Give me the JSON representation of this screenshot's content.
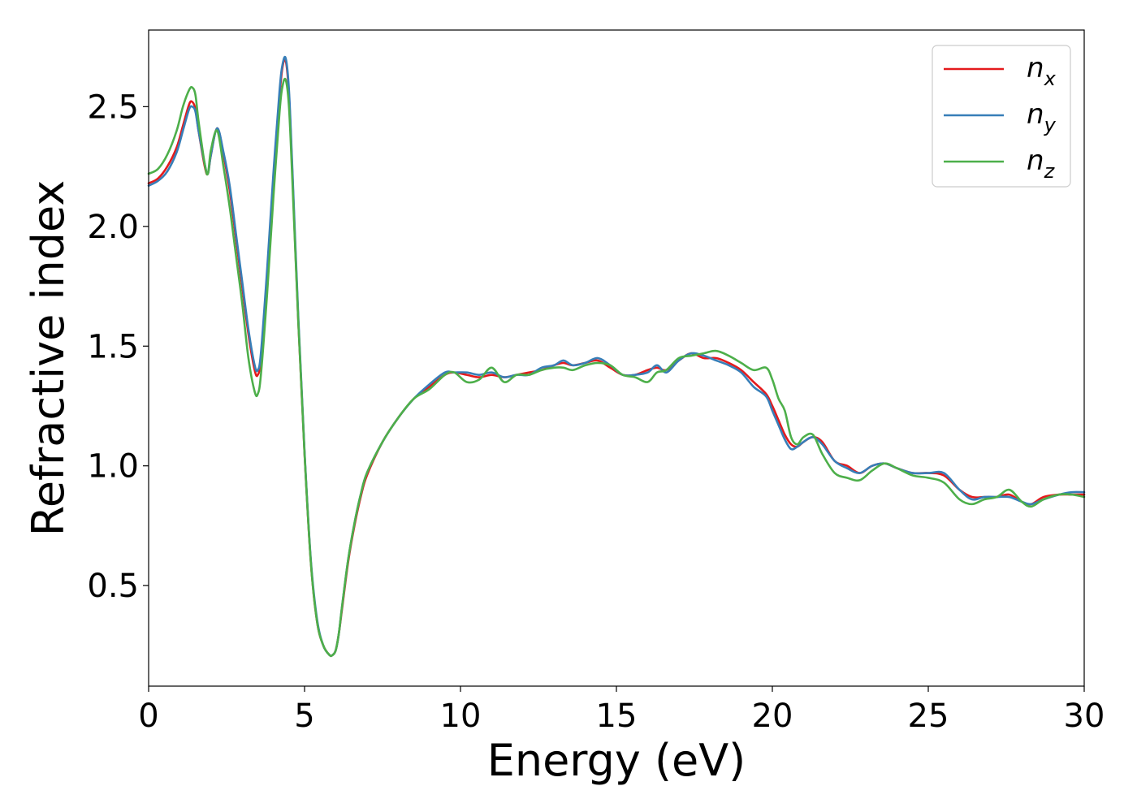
{
  "chart_data": {
    "type": "line",
    "xlabel": "Energy (eV)",
    "ylabel": "Refractive index",
    "xlim": [
      0,
      30
    ],
    "ylim": [
      0.08,
      2.82
    ],
    "xticks": [
      0,
      5,
      10,
      15,
      20,
      25,
      30
    ],
    "xtick_labels": [
      "0",
      "5",
      "10",
      "15",
      "20",
      "25",
      "30"
    ],
    "yticks": [
      0.5,
      1.0,
      1.5,
      2.0,
      2.5
    ],
    "ytick_labels": [
      "0.5",
      "1.0",
      "1.5",
      "2.0",
      "2.5"
    ],
    "grid": false,
    "legend_position": "top-right",
    "series": [
      {
        "name": "n_x",
        "label_main": "n",
        "label_sub": "x",
        "color": "#e41a1c",
        "x": [
          0,
          0.3,
          0.6,
          0.9,
          1.1,
          1.3,
          1.4,
          1.5,
          1.6,
          1.8,
          1.9,
          2.0,
          2.2,
          2.4,
          2.6,
          2.8,
          3.0,
          3.2,
          3.4,
          3.5,
          3.6,
          3.8,
          4.0,
          4.2,
          4.3,
          4.4,
          4.5,
          4.6,
          4.8,
          5.0,
          5.2,
          5.4,
          5.6,
          5.8,
          5.9,
          6.0,
          6.1,
          6.2,
          6.4,
          6.6,
          6.8,
          7.0,
          7.5,
          8.0,
          8.5,
          9.0,
          9.5,
          9.8,
          10.2,
          10.6,
          11.0,
          11.4,
          11.8,
          12.2,
          12.6,
          13.0,
          13.3,
          13.6,
          14.0,
          14.4,
          14.8,
          15.2,
          15.6,
          16.0,
          16.3,
          16.6,
          17.0,
          17.4,
          17.8,
          18.2,
          18.6,
          19.0,
          19.4,
          19.8,
          20.0,
          20.2,
          20.4,
          20.6,
          20.8,
          21.0,
          21.3,
          21.6,
          22.0,
          22.4,
          22.8,
          23.2,
          23.6,
          24.0,
          24.5,
          25.0,
          25.5,
          26.0,
          26.4,
          26.8,
          27.2,
          27.6,
          28.0,
          28.3,
          28.7,
          29.2,
          29.6,
          30.0
        ],
        "values": [
          2.18,
          2.2,
          2.25,
          2.33,
          2.42,
          2.51,
          2.52,
          2.49,
          2.4,
          2.25,
          2.22,
          2.3,
          2.41,
          2.3,
          2.15,
          1.95,
          1.75,
          1.55,
          1.4,
          1.38,
          1.45,
          1.8,
          2.2,
          2.55,
          2.67,
          2.69,
          2.55,
          2.25,
          1.6,
          1.05,
          0.6,
          0.35,
          0.25,
          0.21,
          0.21,
          0.23,
          0.3,
          0.4,
          0.6,
          0.75,
          0.87,
          0.96,
          1.1,
          1.2,
          1.28,
          1.33,
          1.38,
          1.39,
          1.38,
          1.37,
          1.38,
          1.37,
          1.38,
          1.39,
          1.4,
          1.42,
          1.43,
          1.42,
          1.43,
          1.44,
          1.41,
          1.38,
          1.38,
          1.4,
          1.41,
          1.4,
          1.44,
          1.47,
          1.45,
          1.45,
          1.43,
          1.4,
          1.35,
          1.3,
          1.25,
          1.19,
          1.13,
          1.09,
          1.08,
          1.1,
          1.12,
          1.1,
          1.02,
          1.0,
          0.97,
          1.0,
          1.01,
          0.99,
          0.97,
          0.97,
          0.96,
          0.9,
          0.87,
          0.87,
          0.87,
          0.88,
          0.85,
          0.84,
          0.87,
          0.88,
          0.88,
          0.88
        ]
      },
      {
        "name": "n_y",
        "label_main": "n",
        "label_sub": "y",
        "color": "#377eb8",
        "x": [
          0,
          0.3,
          0.6,
          0.9,
          1.1,
          1.3,
          1.4,
          1.5,
          1.6,
          1.8,
          1.9,
          2.0,
          2.2,
          2.4,
          2.6,
          2.8,
          3.0,
          3.2,
          3.4,
          3.5,
          3.6,
          3.8,
          4.0,
          4.2,
          4.3,
          4.4,
          4.5,
          4.6,
          4.8,
          5.0,
          5.2,
          5.4,
          5.6,
          5.8,
          5.9,
          6.0,
          6.1,
          6.2,
          6.4,
          6.6,
          6.8,
          7.0,
          7.5,
          8.0,
          8.5,
          9.0,
          9.5,
          9.8,
          10.2,
          10.6,
          11.0,
          11.4,
          11.8,
          12.2,
          12.6,
          13.0,
          13.3,
          13.6,
          14.0,
          14.4,
          14.8,
          15.2,
          15.6,
          16.0,
          16.3,
          16.6,
          17.0,
          17.4,
          17.8,
          18.2,
          18.6,
          19.0,
          19.4,
          19.8,
          20.0,
          20.2,
          20.4,
          20.6,
          20.8,
          21.0,
          21.3,
          21.6,
          22.0,
          22.4,
          22.8,
          23.2,
          23.6,
          24.0,
          24.5,
          25.0,
          25.5,
          26.0,
          26.4,
          26.8,
          27.2,
          27.6,
          28.0,
          28.3,
          28.7,
          29.2,
          29.6,
          30.0
        ],
        "values": [
          2.17,
          2.19,
          2.23,
          2.31,
          2.4,
          2.49,
          2.5,
          2.48,
          2.4,
          2.26,
          2.22,
          2.3,
          2.41,
          2.31,
          2.17,
          1.97,
          1.77,
          1.57,
          1.42,
          1.4,
          1.47,
          1.82,
          2.22,
          2.57,
          2.68,
          2.7,
          2.57,
          2.27,
          1.62,
          1.06,
          0.61,
          0.36,
          0.25,
          0.21,
          0.21,
          0.23,
          0.3,
          0.41,
          0.61,
          0.76,
          0.88,
          0.97,
          1.1,
          1.2,
          1.28,
          1.34,
          1.39,
          1.39,
          1.39,
          1.38,
          1.39,
          1.37,
          1.38,
          1.38,
          1.41,
          1.42,
          1.44,
          1.42,
          1.43,
          1.45,
          1.42,
          1.38,
          1.38,
          1.39,
          1.42,
          1.39,
          1.44,
          1.47,
          1.46,
          1.44,
          1.42,
          1.39,
          1.33,
          1.29,
          1.23,
          1.17,
          1.11,
          1.07,
          1.08,
          1.1,
          1.12,
          1.09,
          1.02,
          0.99,
          0.97,
          1.0,
          1.01,
          0.99,
          0.97,
          0.97,
          0.97,
          0.9,
          0.86,
          0.87,
          0.87,
          0.87,
          0.85,
          0.84,
          0.86,
          0.88,
          0.89,
          0.89
        ]
      },
      {
        "name": "n_z",
        "label_main": "n",
        "label_sub": "z",
        "color": "#4daf4a",
        "x": [
          0,
          0.3,
          0.6,
          0.9,
          1.1,
          1.3,
          1.4,
          1.5,
          1.6,
          1.8,
          1.9,
          2.0,
          2.2,
          2.4,
          2.6,
          2.8,
          3.0,
          3.2,
          3.4,
          3.5,
          3.6,
          3.8,
          4.0,
          4.2,
          4.3,
          4.4,
          4.5,
          4.6,
          4.8,
          5.0,
          5.2,
          5.4,
          5.6,
          5.8,
          5.9,
          6.0,
          6.1,
          6.2,
          6.4,
          6.6,
          6.8,
          7.0,
          7.5,
          8.0,
          8.5,
          9.0,
          9.5,
          9.8,
          10.2,
          10.6,
          11.0,
          11.4,
          11.8,
          12.2,
          12.6,
          13.0,
          13.3,
          13.6,
          14.0,
          14.4,
          14.8,
          15.2,
          15.6,
          16.0,
          16.3,
          16.6,
          17.0,
          17.4,
          17.8,
          18.2,
          18.6,
          19.0,
          19.4,
          19.8,
          20.0,
          20.2,
          20.4,
          20.6,
          20.8,
          21.0,
          21.3,
          21.6,
          22.0,
          22.4,
          22.8,
          23.2,
          23.6,
          24.0,
          24.5,
          25.0,
          25.5,
          26.0,
          26.4,
          26.8,
          27.2,
          27.6,
          28.0,
          28.3,
          28.7,
          29.2,
          29.6,
          30.0
        ],
        "values": [
          2.22,
          2.24,
          2.3,
          2.4,
          2.5,
          2.57,
          2.58,
          2.55,
          2.44,
          2.26,
          2.22,
          2.32,
          2.4,
          2.25,
          2.08,
          1.88,
          1.68,
          1.45,
          1.31,
          1.3,
          1.38,
          1.72,
          2.12,
          2.48,
          2.59,
          2.61,
          2.5,
          2.22,
          1.6,
          1.05,
          0.6,
          0.35,
          0.25,
          0.21,
          0.21,
          0.23,
          0.3,
          0.41,
          0.61,
          0.76,
          0.88,
          0.97,
          1.1,
          1.2,
          1.28,
          1.32,
          1.38,
          1.39,
          1.35,
          1.36,
          1.41,
          1.35,
          1.38,
          1.38,
          1.4,
          1.41,
          1.41,
          1.4,
          1.42,
          1.43,
          1.42,
          1.38,
          1.37,
          1.35,
          1.39,
          1.4,
          1.45,
          1.46,
          1.47,
          1.48,
          1.46,
          1.43,
          1.4,
          1.41,
          1.36,
          1.28,
          1.23,
          1.12,
          1.09,
          1.12,
          1.13,
          1.05,
          0.97,
          0.95,
          0.94,
          0.98,
          1.01,
          0.99,
          0.96,
          0.95,
          0.93,
          0.86,
          0.84,
          0.86,
          0.87,
          0.9,
          0.85,
          0.83,
          0.86,
          0.88,
          0.88,
          0.87
        ]
      }
    ]
  }
}
